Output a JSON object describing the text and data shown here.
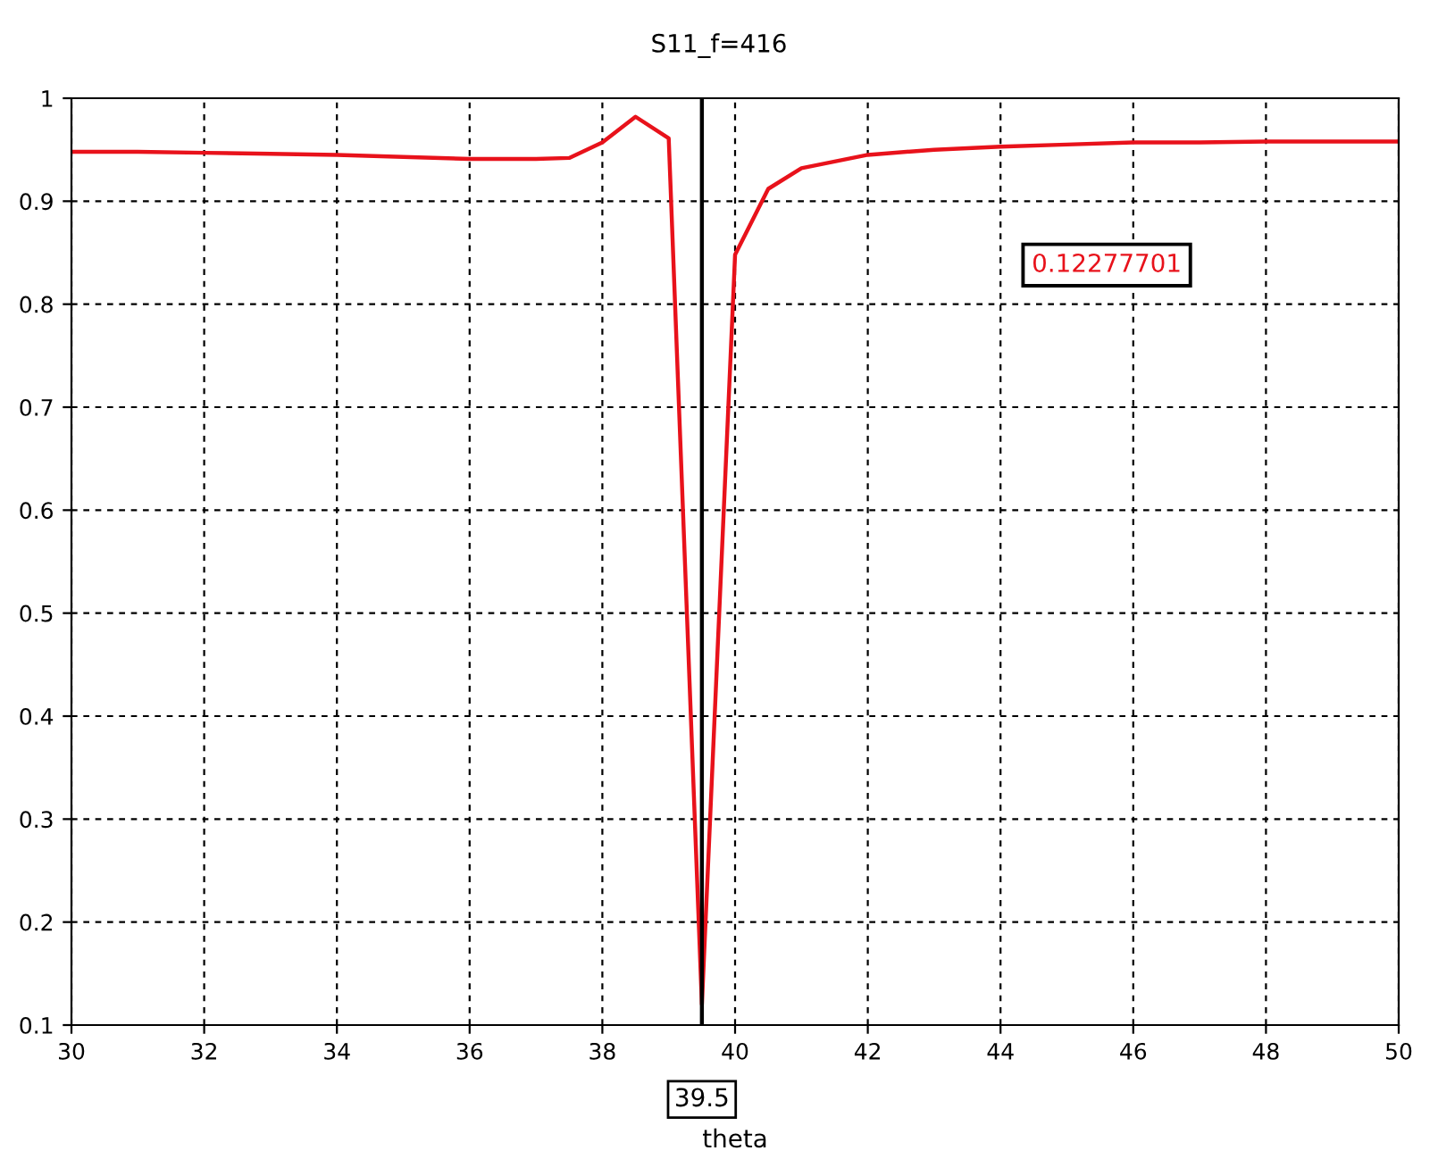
{
  "chart_data": {
    "type": "line",
    "title": "S11_f=416",
    "xlabel": "theta",
    "x": [
      30,
      31,
      32,
      33,
      34,
      35,
      36,
      37,
      37.5,
      38,
      38.5,
      39,
      39.5,
      40,
      40.5,
      41,
      42,
      43,
      44,
      45,
      46,
      47,
      48,
      49,
      50
    ],
    "series": [
      {
        "color": "#e8121b",
        "values": [
          0.948,
          0.948,
          0.947,
          0.946,
          0.945,
          0.943,
          0.941,
          0.941,
          0.942,
          0.957,
          0.982,
          0.961,
          0.12,
          0.848,
          0.912,
          0.932,
          0.945,
          0.95,
          0.953,
          0.955,
          0.957,
          0.957,
          0.958,
          0.958,
          0.958
        ]
      }
    ],
    "xlim": [
      30,
      50
    ],
    "ylim": [
      0.1,
      1
    ],
    "xticks": [
      30,
      32,
      34,
      36,
      38,
      40,
      42,
      44,
      46,
      48,
      50
    ],
    "yticks": [
      0.1,
      0.2,
      0.3,
      0.4,
      0.5,
      0.6,
      0.7,
      0.8,
      0.9,
      1
    ],
    "grid": true,
    "line_style": "solid",
    "marker": "none",
    "ref_lines": [
      {
        "axis": "x",
        "value": 39.5,
        "label": "39.5",
        "color": "#000000"
      }
    ],
    "annotations": [
      "0.12277701"
    ]
  }
}
